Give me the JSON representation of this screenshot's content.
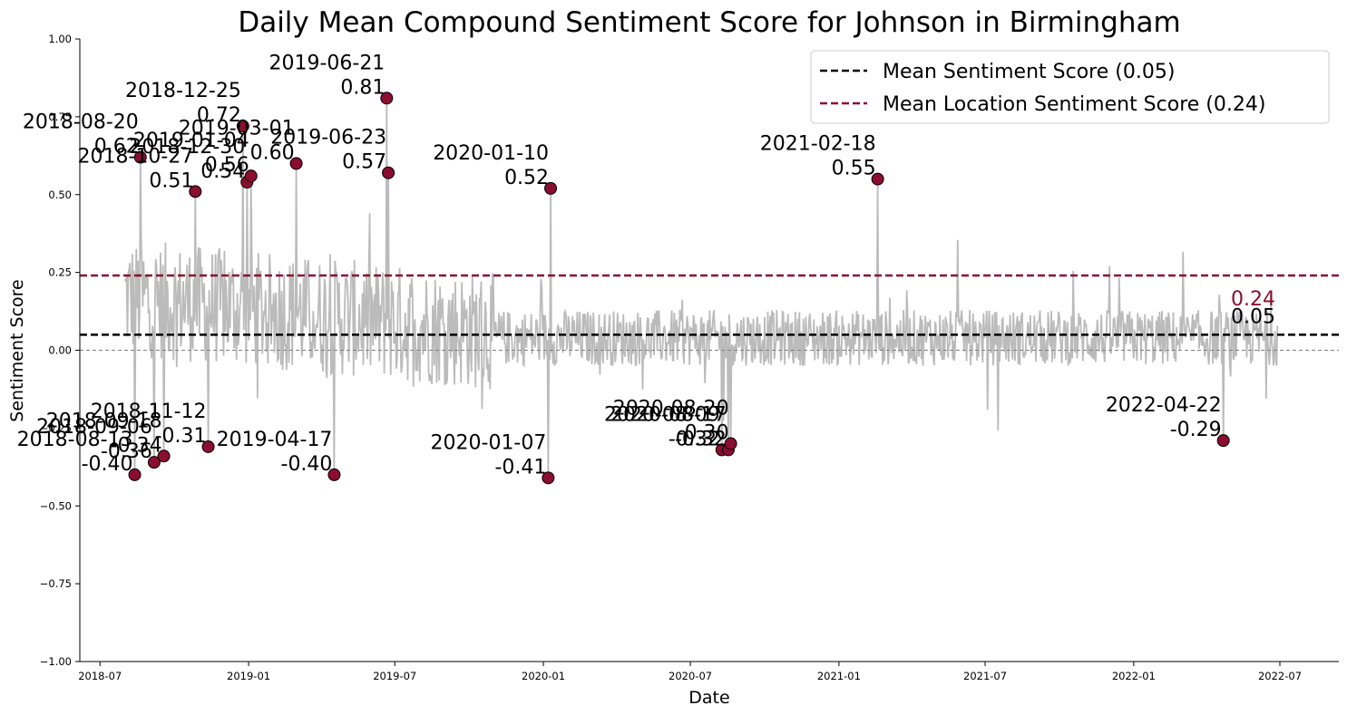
{
  "chart_data": {
    "type": "line",
    "title": "Daily Mean Compound Sentiment Score for Johnson in Birmingham",
    "xlabel": "Date",
    "ylabel": "Sentiment Score",
    "xlim": [
      "2018-06-06",
      "2022-09-12"
    ],
    "ylim": [
      -1.0,
      1.0
    ],
    "x_ticks": [
      "2018-07",
      "2019-01",
      "2019-07",
      "2020-01",
      "2020-07",
      "2021-01",
      "2021-07",
      "2022-01",
      "2022-07"
    ],
    "y_ticks": [
      1.0,
      0.75,
      0.5,
      0.25,
      0.0,
      -0.25,
      -0.5,
      -0.75,
      -1.0
    ],
    "y_tick_labels": [
      "1.00",
      "0.75",
      "0.50",
      "0.25",
      "0.00",
      "−0.25",
      "−0.50",
      "−0.75",
      "−1.00"
    ],
    "series_date_range": [
      "2018-08-01",
      "2022-06-28"
    ],
    "series_color": "#bbbbbb",
    "reference_lines": [
      {
        "name": "Mean Sentiment Score (0.05)",
        "value": 0.05,
        "label": "0.05",
        "color": "#000000",
        "style": "dashed"
      },
      {
        "name": "Mean Location Sentiment Score (0.24)",
        "value": 0.24,
        "label": "0.24",
        "color": "#8b0d30",
        "style": "dashed"
      },
      {
        "name": "",
        "value": 0.0,
        "label": "",
        "color": "#808080",
        "style": "dashed-thin"
      }
    ],
    "legend_position": "top-right",
    "highlight_color": "#8b0d30",
    "annotated_points": [
      {
        "date": "2018-08-20",
        "value": 0.62,
        "label": "0.62"
      },
      {
        "date": "2018-10-27",
        "value": 0.51,
        "label": "0.51"
      },
      {
        "date": "2018-12-25",
        "value": 0.72,
        "label": "0.72"
      },
      {
        "date": "2018-12-30",
        "value": 0.54,
        "label": "0.54"
      },
      {
        "date": "2019-01-04",
        "value": 0.56,
        "label": "0.56"
      },
      {
        "date": "2019-03-01",
        "value": 0.6,
        "label": "0.60"
      },
      {
        "date": "2019-06-21",
        "value": 0.81,
        "label": "0.81"
      },
      {
        "date": "2019-06-23",
        "value": 0.57,
        "label": "0.57"
      },
      {
        "date": "2020-01-10",
        "value": 0.52,
        "label": "0.52"
      },
      {
        "date": "2021-02-18",
        "value": 0.55,
        "label": "0.55"
      },
      {
        "date": "2018-08-13",
        "value": -0.4,
        "label": "-0.40"
      },
      {
        "date": "2018-09-06",
        "value": -0.36,
        "label": "-0.36"
      },
      {
        "date": "2018-09-18",
        "value": -0.34,
        "label": "-0.34"
      },
      {
        "date": "2018-11-12",
        "value": -0.31,
        "label": "-0.31"
      },
      {
        "date": "2019-04-17",
        "value": -0.4,
        "label": "-0.40"
      },
      {
        "date": "2020-01-07",
        "value": -0.41,
        "label": "-0.41"
      },
      {
        "date": "2020-08-09",
        "value": -0.32,
        "label": "-0.32"
      },
      {
        "date": "2020-08-17",
        "value": -0.32,
        "label": "-0.32"
      },
      {
        "date": "2020-08-20",
        "value": -0.3,
        "label": "-0.30"
      },
      {
        "date": "2022-04-22",
        "value": -0.29,
        "label": "-0.29"
      }
    ]
  }
}
